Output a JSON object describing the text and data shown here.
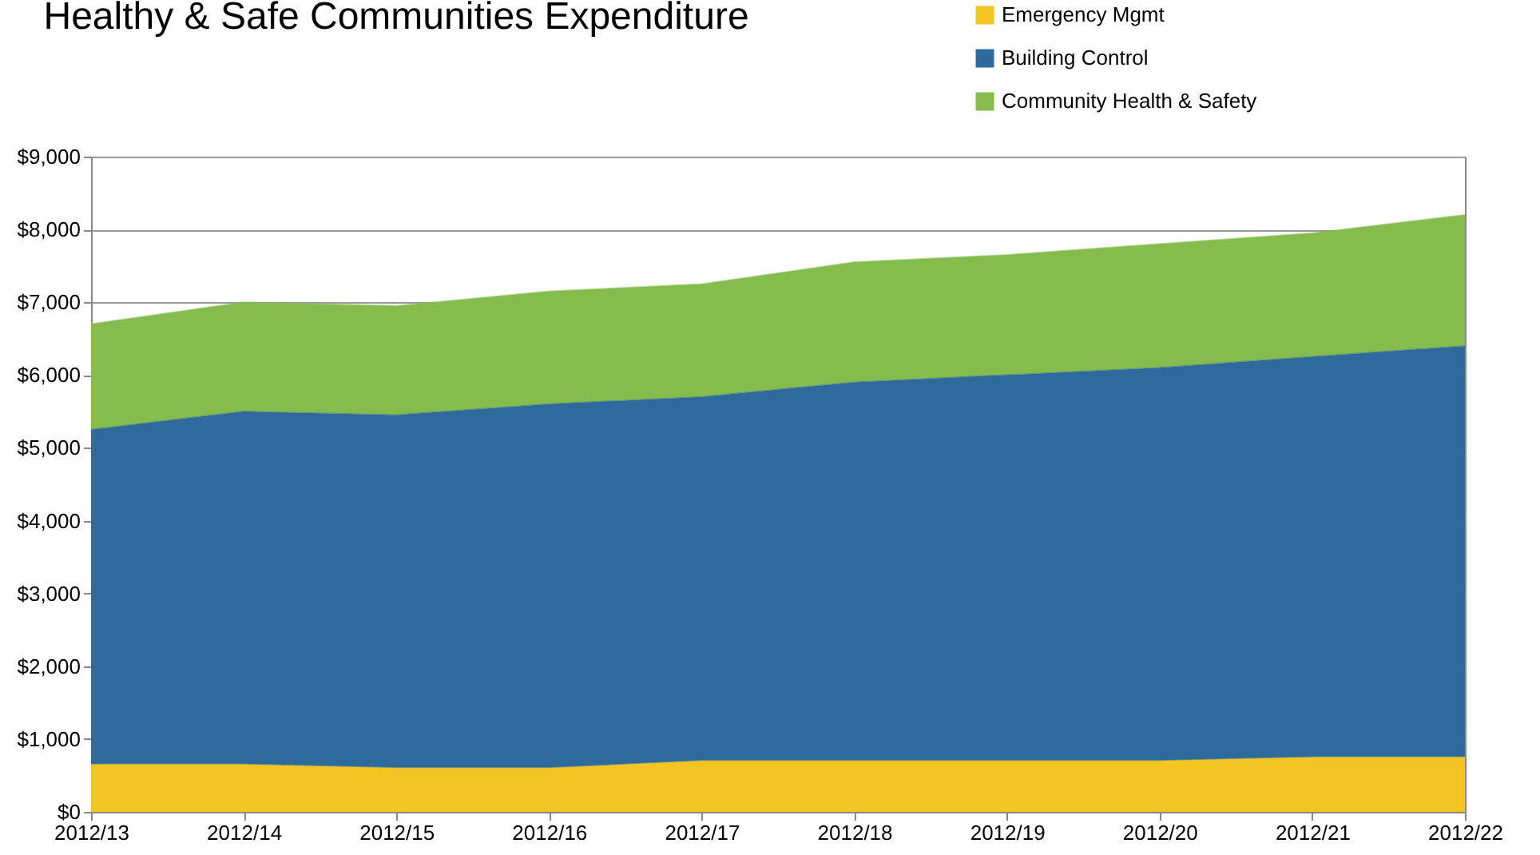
{
  "chart_data": {
    "type": "area",
    "title": "Healthy & Safe Communities Expenditure",
    "stacked": true,
    "categories": [
      "2012/13",
      "2012/14",
      "2012/15",
      "2012/16",
      "2012/17",
      "2012/18",
      "2012/19",
      "2012/20",
      "2012/21",
      "2012/22"
    ],
    "series": [
      {
        "name": "Emergency Mgmt",
        "color": "#f2c523",
        "values": [
          650,
          650,
          600,
          600,
          700,
          700,
          700,
          700,
          750,
          750
        ]
      },
      {
        "name": "Building Control",
        "color": "#2e6a9c",
        "values": [
          4600,
          4850,
          4850,
          5000,
          5000,
          5200,
          5300,
          5400,
          5500,
          5650
        ]
      },
      {
        "name": "Community Health & Safety",
        "color": "#86bc4e",
        "values": [
          1450,
          1500,
          1500,
          1550,
          1550,
          1650,
          1650,
          1700,
          1700,
          1800
        ]
      }
    ],
    "ylim": [
      0,
      9000
    ],
    "yticks": [
      {
        "value": 0,
        "label": "$0"
      },
      {
        "value": 1000,
        "label": "$1,000"
      },
      {
        "value": 2000,
        "label": "$2,000"
      },
      {
        "value": 3000,
        "label": "$3,000"
      },
      {
        "value": 4000,
        "label": "$4,000"
      },
      {
        "value": 5000,
        "label": "$5,000"
      },
      {
        "value": 6000,
        "label": "$6,000"
      },
      {
        "value": 7000,
        "label": "$7,000"
      },
      {
        "value": 8000,
        "label": "$8,000"
      },
      {
        "value": 9000,
        "label": "$9,000"
      }
    ],
    "grid": "y",
    "legend": "top right"
  }
}
